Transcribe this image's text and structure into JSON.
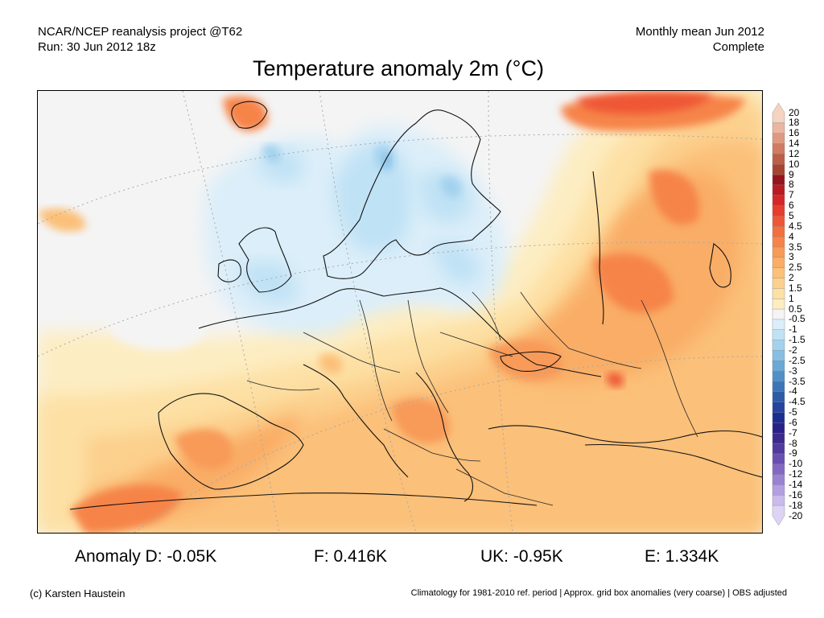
{
  "header": {
    "source_line": "NCAR/NCEP reanalysis project @T62",
    "run_line": "Run: 30 Jun 2012 18z",
    "period_line": "Monthly mean Jun 2012",
    "status_line": "Complete"
  },
  "title": "Temperature anomaly 2m (°C)",
  "legend": {
    "labels": [
      "20",
      "18",
      "16",
      "14",
      "12",
      "10",
      "9",
      "8",
      "7",
      "6",
      "5",
      "4.5",
      "4",
      "3.5",
      "3",
      "2.5",
      "2",
      "1.5",
      "1",
      "0.5",
      "-0.5",
      "-1",
      "-1.5",
      "-2",
      "-2.5",
      "-3",
      "-3.5",
      "-4",
      "-4.5",
      "-5",
      "-6",
      "-7",
      "-8",
      "-9",
      "-10",
      "-12",
      "-14",
      "-16",
      "-18",
      "-20"
    ],
    "colors": [
      "#f4d3c0",
      "#eab69f",
      "#de9a80",
      "#cf7c62",
      "#bd5e46",
      "#a8432f",
      "#96141d",
      "#b81c22",
      "#d3282a",
      "#e53d2f",
      "#ef5636",
      "#f36f3f",
      "#f6844a",
      "#f89a58",
      "#f9ad66",
      "#fbc079",
      "#fcd08d",
      "#fde0a4",
      "#fdedc2",
      "#f4f4f4",
      "#dbeef9",
      "#c0e2f5",
      "#a3d2ee",
      "#86bfe3",
      "#6aa8d6",
      "#5090c7",
      "#3d76b6",
      "#2d5ca5",
      "#2444a0",
      "#1b2e92",
      "#2a2187",
      "#3d2a8d",
      "#513a9d",
      "#6a4fb0",
      "#8367c3",
      "#9a82d3",
      "#b29ee0",
      "#c9bbeb",
      "#ddd4f4"
    ]
  },
  "stats": {
    "anomaly_d": "Anomaly D: -0.05K",
    "anomaly_f": "F: 0.416K",
    "anomaly_uk": "UK: -0.95K",
    "anomaly_e": "E: 1.334K"
  },
  "footer": {
    "credit": "(c) Karsten Haustein",
    "note": "Climatology for 1981-2010 ref. period | Approx. grid box anomalies (very coarse) | OBS adjusted"
  }
}
